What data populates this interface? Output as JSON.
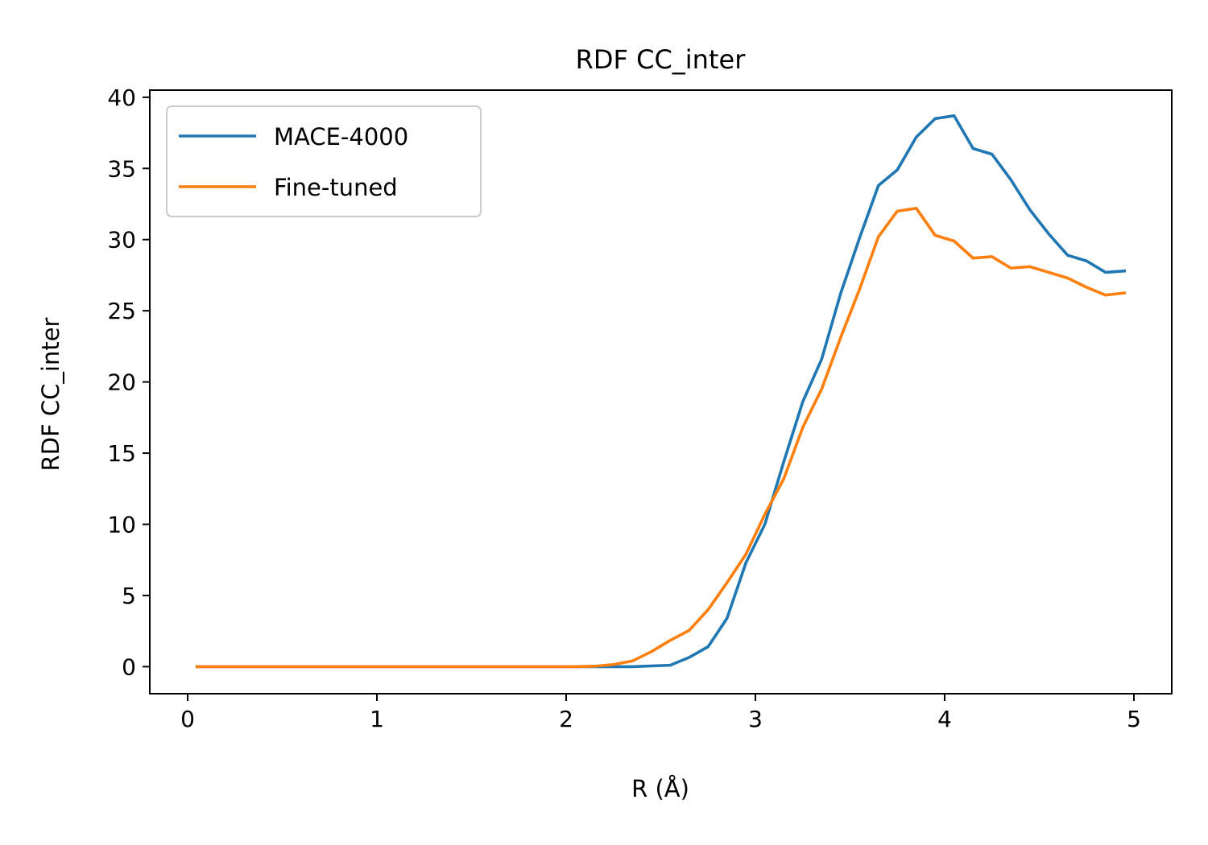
{
  "chart_data": {
    "type": "line",
    "title": "RDF CC_inter",
    "xlabel": "R (Å)",
    "ylabel": "RDF CC_inter",
    "xlim": [
      -0.2,
      5.2
    ],
    "ylim": [
      -1.9,
      40.5
    ],
    "xticks": [
      0,
      1,
      2,
      3,
      4,
      5
    ],
    "yticks": [
      0,
      5,
      10,
      15,
      20,
      25,
      30,
      35,
      40
    ],
    "grid": false,
    "legend_position": "top-left",
    "x": [
      0.05,
      0.15,
      0.25,
      0.35,
      0.45,
      0.55,
      0.65,
      0.75,
      0.85,
      0.95,
      1.05,
      1.15,
      1.25,
      1.35,
      1.45,
      1.55,
      1.65,
      1.75,
      1.85,
      1.95,
      2.05,
      2.15,
      2.25,
      2.35,
      2.45,
      2.55,
      2.65,
      2.75,
      2.85,
      2.95,
      3.05,
      3.15,
      3.25,
      3.35,
      3.45,
      3.55,
      3.65,
      3.75,
      3.85,
      3.95,
      4.05,
      4.15,
      4.25,
      4.35,
      4.45,
      4.55,
      4.65,
      4.75,
      4.85,
      4.95
    ],
    "series": [
      {
        "name": "MACE-4000",
        "color": "#1f77b4",
        "values": [
          0,
          0,
          0,
          0,
          0,
          0,
          0,
          0,
          0,
          0,
          0,
          0,
          0,
          0,
          0,
          0,
          0,
          0,
          0,
          0,
          0,
          0,
          0,
          0,
          0.05,
          0.1,
          0.65,
          1.4,
          3.4,
          7.3,
          10,
          14.4,
          18.6,
          21.6,
          26.2,
          30.1,
          33.8,
          34.9,
          37.2,
          38.5,
          38.7,
          36.4,
          36,
          34.2,
          32.1,
          30.4,
          28.9,
          28.5,
          27.7,
          27.8
        ]
      },
      {
        "name": "Fine-tuned",
        "color": "#ff7f0e",
        "values": [
          0,
          0,
          0,
          0,
          0,
          0,
          0,
          0,
          0,
          0,
          0,
          0,
          0,
          0,
          0,
          0,
          0,
          0,
          0,
          0,
          0,
          0.03,
          0.15,
          0.4,
          1.05,
          1.85,
          2.55,
          4,
          5.9,
          7.9,
          10.7,
          13.2,
          16.8,
          19.5,
          23.1,
          26.5,
          30.2,
          32,
          32.2,
          30.3,
          29.9,
          28.7,
          28.8,
          28,
          28.1,
          27.7,
          27.3,
          26.65,
          26.1,
          26.25
        ]
      }
    ]
  }
}
